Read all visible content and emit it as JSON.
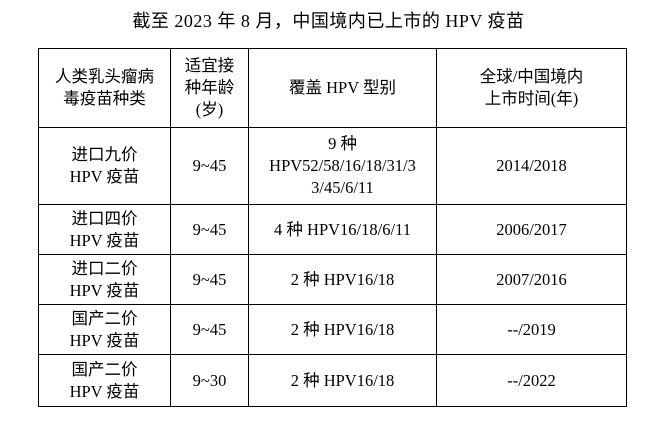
{
  "title": "截至 2023 年 8 月，中国境内已上市的 HPV 疫苗",
  "table": {
    "headers": [
      "人类乳头瘤病\n毒疫苗种类",
      "适宜接\n种年龄\n(岁)",
      "覆盖 HPV 型别",
      "全球/中国境内\n上市时间(年)"
    ],
    "rows": [
      {
        "vaccine": "进口九价\nHPV 疫苗",
        "age": "9~45",
        "types": "9 种\nHPV52/58/16/18/31/3\n3/45/6/11",
        "launch": "2014/2018"
      },
      {
        "vaccine": "进口四价\nHPV 疫苗",
        "age": "9~45",
        "types": "4 种 HPV16/18/6/11",
        "launch": "2006/2017"
      },
      {
        "vaccine": "进口二价\nHPV 疫苗",
        "age": "9~45",
        "types": "2 种 HPV16/18",
        "launch": "2007/2016"
      },
      {
        "vaccine": "国产二价\nHPV 疫苗",
        "age": "9~45",
        "types": "2 种 HPV16/18",
        "launch": "--/2019"
      },
      {
        "vaccine": "国产二价\nHPV 疫苗",
        "age": "9~30",
        "types": "2 种 HPV16/18",
        "launch": "--/2022"
      }
    ]
  }
}
